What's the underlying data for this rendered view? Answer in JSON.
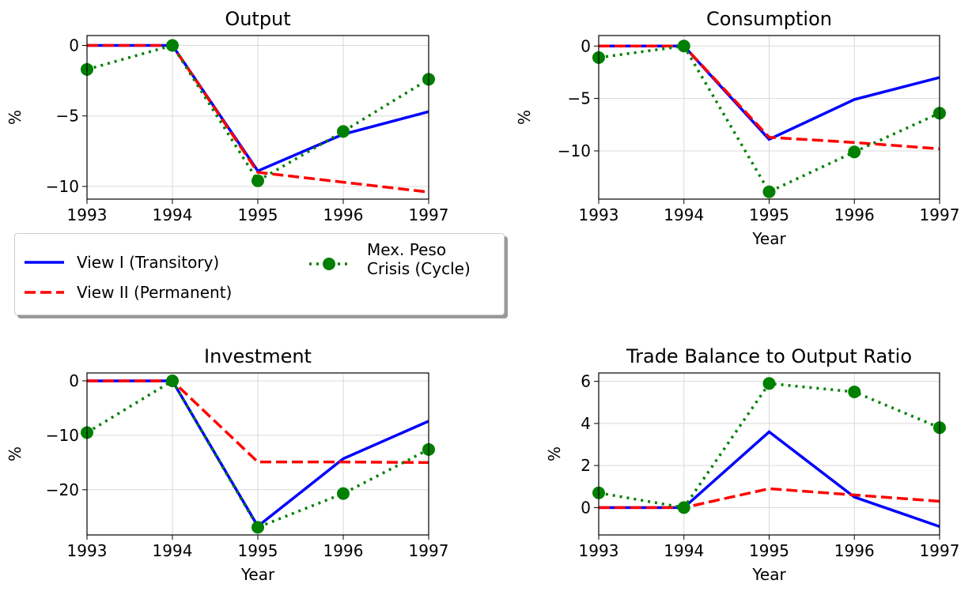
{
  "chart_data": [
    {
      "type": "line",
      "title": "Output",
      "ylabel": "%",
      "x": [
        1993,
        1994,
        1995,
        1996,
        1997
      ],
      "xlim": [
        1993,
        1997
      ],
      "xticks": [
        1993,
        1994,
        1995,
        1996,
        1997
      ],
      "ylim": [
        -10.9,
        0.7
      ],
      "yticks": [
        {
          "value": -10,
          "label": "−10"
        },
        {
          "value": -5,
          "label": "−5"
        },
        0
      ],
      "grid": true,
      "series": [
        {
          "name": "View I (Transitory)",
          "color": "#0000ff",
          "linestyle": "solid",
          "values": [
            0,
            0,
            -8.9,
            -6.3,
            -4.7
          ]
        },
        {
          "name": "View II (Permanent)",
          "color": "#ff0000",
          "linestyle": "dashed",
          "values": [
            0,
            0,
            -9.0,
            -9.7,
            -10.4
          ]
        },
        {
          "name": "Mex. Peso Crisis (Cycle)",
          "color": "#008000",
          "linestyle": "dotted",
          "marker": "o",
          "values": [
            -1.7,
            0,
            -9.6,
            -6.1,
            -2.4
          ]
        }
      ]
    },
    {
      "type": "line",
      "title": "Consumption",
      "ylabel": "%",
      "xlabel": "Year",
      "x": [
        1993,
        1994,
        1995,
        1996,
        1997
      ],
      "xlim": [
        1993,
        1997
      ],
      "xticks": [
        1993,
        1994,
        1995,
        1996,
        1997
      ],
      "ylim": [
        -14.6,
        1.0
      ],
      "yticks": [
        {
          "value": -10,
          "label": "−10"
        },
        {
          "value": -5,
          "label": "−5"
        },
        0
      ],
      "grid": true,
      "series": [
        {
          "color": "#0000ff",
          "linestyle": "solid",
          "values": [
            0,
            0,
            -8.9,
            -5.1,
            -3.0
          ]
        },
        {
          "color": "#ff0000",
          "linestyle": "dashed",
          "values": [
            0,
            0,
            -8.7,
            -9.2,
            -9.8
          ]
        },
        {
          "color": "#008000",
          "linestyle": "dotted",
          "marker": "o",
          "values": [
            -1.1,
            0,
            -13.9,
            -10.1,
            -6.4
          ]
        }
      ]
    },
    {
      "type": "line",
      "title": "Investment",
      "ylabel": "%",
      "xlabel": "Year",
      "x": [
        1993,
        1994,
        1995,
        1996,
        1997
      ],
      "xlim": [
        1993,
        1997
      ],
      "xticks": [
        1993,
        1994,
        1995,
        1996,
        1997
      ],
      "ylim": [
        -28.3,
        1.45
      ],
      "yticks": [
        {
          "value": -20,
          "label": "−20"
        },
        {
          "value": -10,
          "label": "−10"
        },
        0
      ],
      "grid": true,
      "series": [
        {
          "color": "#0000ff",
          "linestyle": "solid",
          "values": [
            0,
            0,
            -26.7,
            -14.3,
            -7.4
          ]
        },
        {
          "color": "#ff0000",
          "linestyle": "dashed",
          "values": [
            0,
            0,
            -14.9,
            -14.9,
            -15.0
          ]
        },
        {
          "color": "#008000",
          "linestyle": "dotted",
          "marker": "o",
          "values": [
            -9.5,
            0,
            -26.9,
            -20.7,
            -12.6
          ]
        }
      ]
    },
    {
      "type": "line",
      "title": "Trade Balance to Output Ratio",
      "ylabel": "%",
      "xlabel": "Year",
      "x": [
        1993,
        1994,
        1995,
        1996,
        1997
      ],
      "xlim": [
        1993,
        1997
      ],
      "xticks": [
        1993,
        1994,
        1995,
        1996,
        1997
      ],
      "ylim": [
        -1.3,
        6.4
      ],
      "yticks": [
        0,
        2,
        4,
        6
      ],
      "grid": true,
      "series": [
        {
          "color": "#0000ff",
          "linestyle": "solid",
          "values": [
            0,
            0,
            3.6,
            0.5,
            -0.9
          ]
        },
        {
          "color": "#ff0000",
          "linestyle": "dashed",
          "values": [
            0,
            0,
            0.9,
            0.6,
            0.3
          ]
        },
        {
          "color": "#008000",
          "linestyle": "dotted",
          "marker": "o",
          "values": [
            0.7,
            0,
            5.9,
            5.5,
            3.8
          ]
        }
      ]
    }
  ]
}
